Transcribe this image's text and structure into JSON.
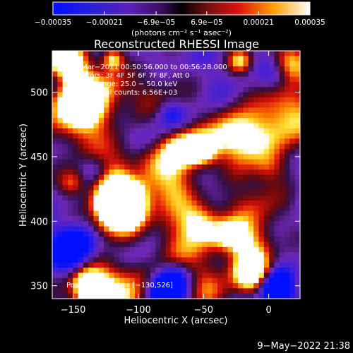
{
  "chart_data": {
    "type": "heatmap",
    "title": "Reconstructed RHESSI Image",
    "xlabel": "Heliocentric X (arcsec)",
    "ylabel": "Heliocentric Y (arcsec)",
    "xlim": [
      -166,
      24
    ],
    "ylim": [
      340,
      532
    ],
    "x_ticks": [
      -150,
      -100,
      -50,
      0
    ],
    "y_ticks": [
      350,
      400,
      450,
      500
    ],
    "x_tick_labels": [
      "−150",
      "−100",
      "−50",
      "0"
    ],
    "y_tick_labels": [
      "350",
      "400",
      "450",
      "500"
    ],
    "colorbar": {
      "range": [
        -0.00035,
        0.00035
      ],
      "ticks": [
        -0.00035,
        -0.00021,
        -6.9e-05,
        6.9e-05,
        0.00021,
        0.00035
      ],
      "tick_labels": [
        "−0.00035",
        "−0.00021",
        "−6.9e−05",
        "6.9e−05",
        "0.00021",
        "0.00035"
      ],
      "units_label": "(photons cm⁻² s⁻¹ asec⁻²)"
    },
    "annotations": [
      "11−Mar−2011 00:50:56.000 to 00:56:28.000",
      "Detectors: 3F 4F 5F 6F 7F 8F, Att 0",
      "Energy Range: 25.0 − 50.0 keV",
      "Clean    Total counts: 6.56E+03"
    ],
    "peak": {
      "label": "Position of Peak = [−130,526]",
      "x": -130,
      "y": 526
    },
    "footer": "9−May−2022 21:38",
    "colors": {
      "background": "#000000",
      "text": "#ffffff",
      "palette_low": "#0000ff",
      "palette_mid_low": "#7a1fb5",
      "palette_zero": "#000000",
      "palette_mid_high": "#e01010",
      "palette_high": "#ffffff"
    }
  }
}
